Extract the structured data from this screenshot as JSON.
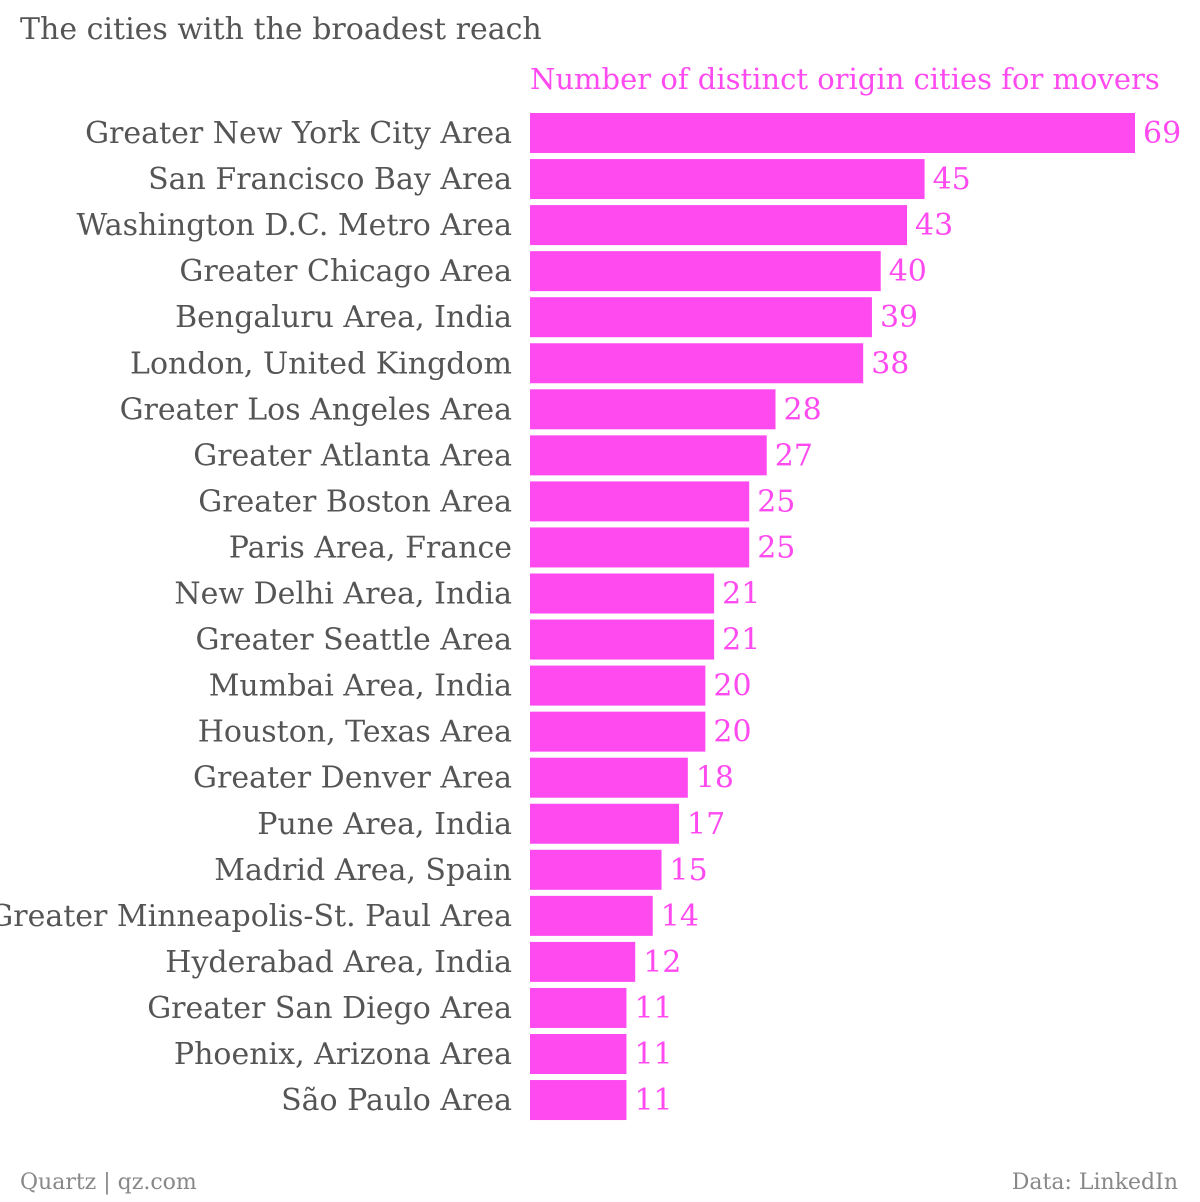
{
  "header": {
    "title": "The cities with the broadest reach"
  },
  "colors": {
    "accent": "#ff4af0",
    "label_text": "#555555",
    "footer_text": "#888888"
  },
  "chart_data": {
    "type": "bar",
    "orientation": "horizontal",
    "title": "The cities with the broadest reach",
    "categories": [
      "Greater New York City Area",
      "San Francisco Bay Area",
      "Washington D.C. Metro Area",
      "Greater Chicago Area",
      "Bengaluru Area, India",
      "London, United Kingdom",
      "Greater Los Angeles Area",
      "Greater Atlanta Area",
      "Greater Boston Area",
      "Paris Area, France",
      "New Delhi Area, India",
      "Greater Seattle Area",
      "Mumbai Area, India",
      "Houston, Texas Area",
      "Greater Denver Area",
      "Pune Area, India",
      "Madrid Area, Spain",
      "Greater Minneapolis-St. Paul Area",
      "Hyderabad Area, India",
      "Greater San Diego Area",
      "Phoenix, Arizona Area",
      "São Paulo Area"
    ],
    "series": [
      {
        "name": "Number of distinct origin cities for movers",
        "values": [
          69,
          45,
          43,
          40,
          39,
          38,
          28,
          27,
          25,
          25,
          21,
          21,
          20,
          20,
          18,
          17,
          15,
          14,
          12,
          11,
          11,
          11
        ]
      }
    ],
    "xlim": [
      0,
      69
    ],
    "grid": false,
    "data_labels": true
  },
  "footer": {
    "source_left": "Quartz | qz.com",
    "source_right": "Data: LinkedIn"
  }
}
